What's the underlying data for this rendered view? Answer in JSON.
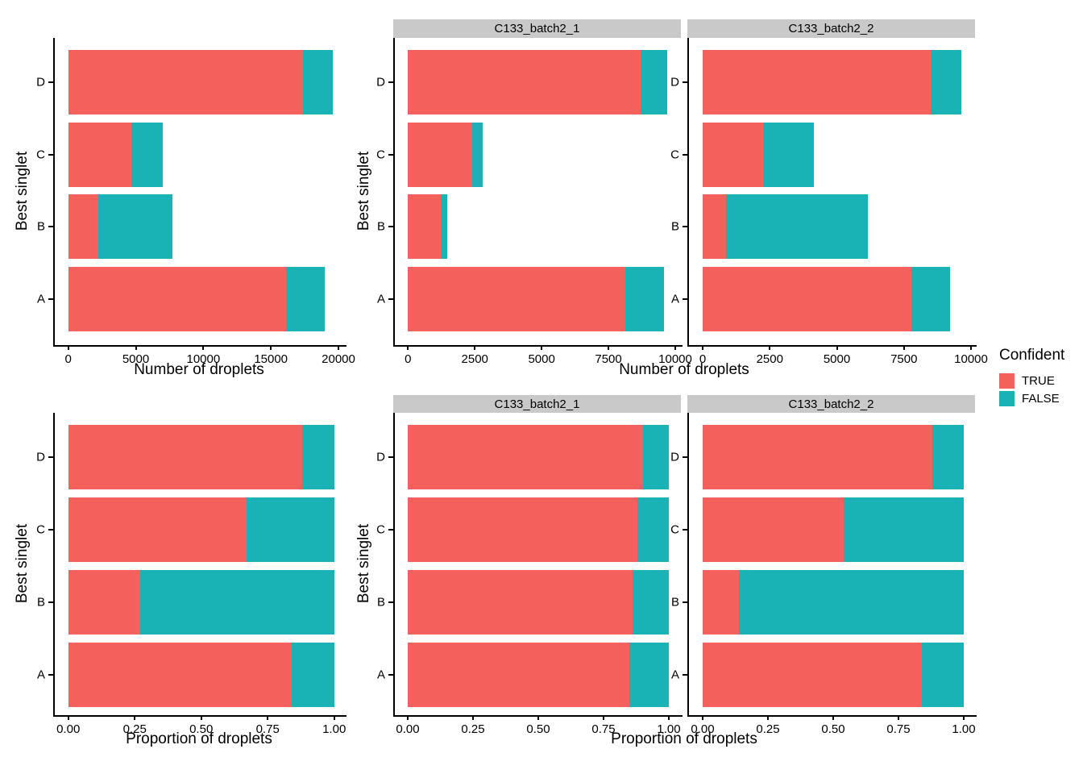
{
  "colors": {
    "true_fill": "#F4605C",
    "false_fill": "#19B2B5",
    "strip_bg": "#C9C9C9",
    "axis": "#000000"
  },
  "facets": [
    "C133_batch2_1",
    "C133_batch2_2"
  ],
  "axis_titles": {
    "count": "Number of droplets",
    "proportion": "Proportion of droplets",
    "y": "Best singlet"
  },
  "legend": {
    "title": "Confident",
    "items": [
      {
        "label": "TRUE",
        "color": "#F4605C"
      },
      {
        "label": "FALSE",
        "color": "#19B2B5"
      }
    ]
  },
  "chart_data": [
    {
      "id": "p1",
      "type": "bar",
      "orientation": "horizontal",
      "stacked": true,
      "panel": "counts-combined",
      "facet": null,
      "title": "",
      "xlabel": "Number of droplets",
      "ylabel": "Best singlet",
      "categories": [
        "A",
        "B",
        "C",
        "D"
      ],
      "series": [
        {
          "name": "TRUE",
          "color": "#F4605C",
          "values": [
            16100,
            2200,
            4700,
            17350
          ]
        },
        {
          "name": "FALSE",
          "color": "#19B2B5",
          "values": [
            2900,
            5500,
            2300,
            2250
          ]
        }
      ],
      "xlim": [
        0,
        20000
      ],
      "grid": false,
      "tick_values": [
        0,
        5000,
        10000,
        15000,
        20000
      ],
      "tick_labels": [
        "0",
        "5000",
        "10000",
        "15000",
        "20000"
      ]
    },
    {
      "id": "p2",
      "type": "bar",
      "orientation": "horizontal",
      "stacked": true,
      "panel": "counts-facet1",
      "facet": "C133_batch2_1",
      "title": "C133_batch2_1",
      "xlabel": "Number of droplets",
      "ylabel": "Best singlet",
      "categories": [
        "A",
        "B",
        "C",
        "D"
      ],
      "series": [
        {
          "name": "TRUE",
          "color": "#F4605C",
          "values": [
            8140,
            1240,
            2410,
            8690
          ]
        },
        {
          "name": "FALSE",
          "color": "#19B2B5",
          "values": [
            1430,
            240,
            370,
            1000
          ]
        }
      ],
      "xlim": [
        0,
        10000
      ],
      "grid": false,
      "tick_values": [
        0,
        2500,
        5000,
        7500,
        10000
      ],
      "tick_labels": [
        "0",
        "2500",
        "5000",
        "7500",
        "10000"
      ]
    },
    {
      "id": "p3",
      "type": "bar",
      "orientation": "horizontal",
      "stacked": true,
      "panel": "counts-facet2",
      "facet": "C133_batch2_2",
      "title": "C133_batch2_2",
      "xlabel": "Number of droplets",
      "ylabel": "Best singlet",
      "categories": [
        "A",
        "B",
        "C",
        "D"
      ],
      "series": [
        {
          "name": "TRUE",
          "color": "#F4605C",
          "values": [
            7780,
            860,
            2260,
            8500
          ]
        },
        {
          "name": "FALSE",
          "color": "#19B2B5",
          "values": [
            1430,
            5290,
            1890,
            1140
          ]
        }
      ],
      "xlim": [
        0,
        10000
      ],
      "grid": false,
      "tick_values": [
        0,
        2500,
        5000,
        7500,
        10000
      ],
      "tick_labels": [
        "0",
        "2500",
        "5000",
        "7500",
        "10000"
      ]
    },
    {
      "id": "p4",
      "type": "bar",
      "orientation": "horizontal",
      "stacked": true,
      "panel": "proportion-combined",
      "facet": null,
      "title": "",
      "xlabel": "Proportion of droplets",
      "ylabel": "Best singlet",
      "categories": [
        "A",
        "B",
        "C",
        "D"
      ],
      "series": [
        {
          "name": "TRUE",
          "color": "#F4605C",
          "values": [
            0.84,
            0.27,
            0.67,
            0.88
          ]
        },
        {
          "name": "FALSE",
          "color": "#19B2B5",
          "values": [
            0.16,
            0.73,
            0.33,
            0.12
          ]
        }
      ],
      "xlim": [
        0,
        1
      ],
      "grid": false,
      "tick_values": [
        0,
        0.25,
        0.5,
        0.75,
        1
      ],
      "tick_labels": [
        "0.00",
        "0.25",
        "0.50",
        "0.75",
        "1.00"
      ]
    },
    {
      "id": "p5",
      "type": "bar",
      "orientation": "horizontal",
      "stacked": true,
      "panel": "proportion-facet1",
      "facet": "C133_batch2_1",
      "title": "C133_batch2_1",
      "xlabel": "Proportion of droplets",
      "ylabel": "Best singlet",
      "categories": [
        "A",
        "B",
        "C",
        "D"
      ],
      "series": [
        {
          "name": "TRUE",
          "color": "#F4605C",
          "values": [
            0.85,
            0.86,
            0.88,
            0.9
          ]
        },
        {
          "name": "FALSE",
          "color": "#19B2B5",
          "values": [
            0.15,
            0.14,
            0.12,
            0.1
          ]
        }
      ],
      "xlim": [
        0,
        1
      ],
      "grid": false,
      "tick_values": [
        0,
        0.25,
        0.5,
        0.75,
        1
      ],
      "tick_labels": [
        "0.00",
        "0.25",
        "0.50",
        "0.75",
        "1.00"
      ]
    },
    {
      "id": "p6",
      "type": "bar",
      "orientation": "horizontal",
      "stacked": true,
      "panel": "proportion-facet2",
      "facet": "C133_batch2_2",
      "title": "C133_batch2_2",
      "xlabel": "Proportion of droplets",
      "ylabel": "Best singlet",
      "categories": [
        "A",
        "B",
        "C",
        "D"
      ],
      "series": [
        {
          "name": "TRUE",
          "color": "#F4605C",
          "values": [
            0.84,
            0.14,
            0.54,
            0.88
          ]
        },
        {
          "name": "FALSE",
          "color": "#19B2B5",
          "values": [
            0.16,
            0.86,
            0.46,
            0.12
          ]
        }
      ],
      "xlim": [
        0,
        1
      ],
      "grid": false,
      "tick_values": [
        0,
        0.25,
        0.5,
        0.75,
        1
      ],
      "tick_labels": [
        "0.00",
        "0.25",
        "0.50",
        "0.75",
        "1.00"
      ]
    }
  ]
}
